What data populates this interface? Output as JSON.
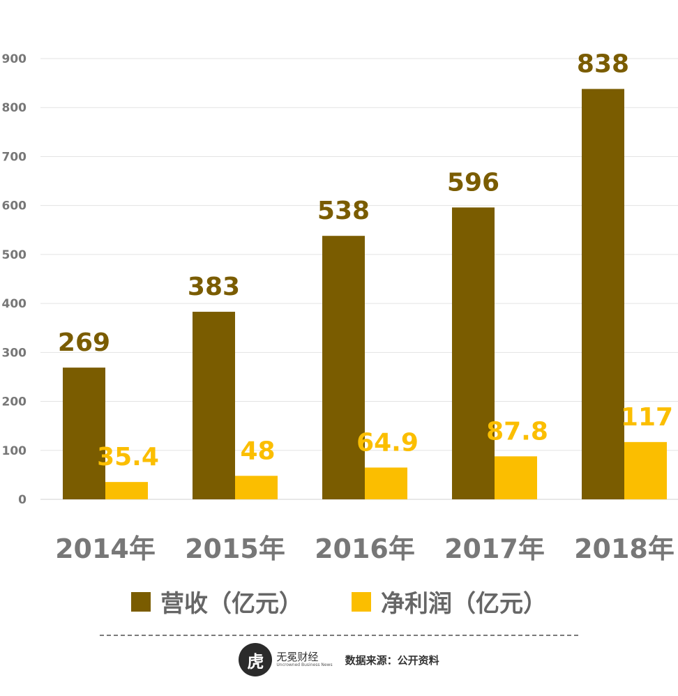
{
  "chart_data": {
    "type": "bar",
    "categories": [
      "2014年",
      "2015年",
      "2016年",
      "2017年",
      "2018年"
    ],
    "series": [
      {
        "name": "营收（亿元）",
        "values": [
          269,
          383,
          538,
          596,
          838
        ],
        "color": "#7a5c00"
      },
      {
        "name": "净利润（亿元）",
        "values": [
          35.4,
          48,
          64.9,
          87.8,
          117
        ],
        "color": "#fbbe00"
      }
    ],
    "data_labels": [
      [
        "269",
        "383",
        "538",
        "596",
        "838"
      ],
      [
        "35.4",
        "48",
        "64.9",
        "87.8",
        "117"
      ]
    ],
    "ylim": [
      0,
      900
    ],
    "yticks": [
      0,
      100,
      200,
      300,
      400,
      500,
      600,
      700,
      800,
      900
    ],
    "grid": true,
    "legend_position": "bottom"
  },
  "legend": {
    "revenue_label": "营收（亿元）",
    "profit_label": "净利润（亿元）",
    "revenue_color": "#7a5c00",
    "profit_color": "#fbbe00"
  },
  "footer": {
    "logo_mark": "虎",
    "logo_name": "无冕财经",
    "logo_sub": "Uncrowned Business News",
    "source": "数据来源：公开资料"
  }
}
